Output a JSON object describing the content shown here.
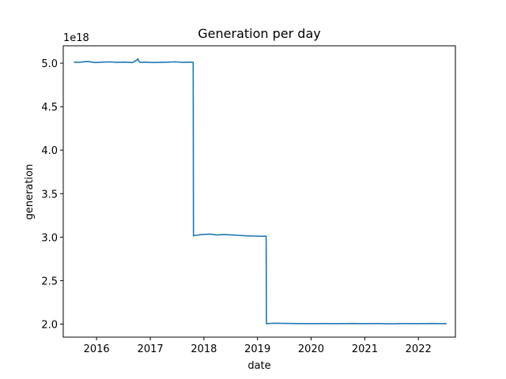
{
  "chart_data": {
    "type": "line",
    "title": "Generation per day",
    "xlabel": "date",
    "ylabel": "generation",
    "y_multiplier_label": "1e18",
    "x_ticks": [
      "2016",
      "2017",
      "2018",
      "2019",
      "2020",
      "2021",
      "2022"
    ],
    "y_ticks": [
      "2.0",
      "2.5",
      "3.0",
      "3.5",
      "4.0",
      "4.5",
      "5.0"
    ],
    "xlim": [
      "2015-05-19",
      "2022-09-10"
    ],
    "ylim": [
      1.85,
      5.2
    ],
    "grid": false,
    "line_color": "#1f77b4",
    "series": [
      {
        "x": [
          "2015-07-30",
          "2015-09-15",
          "2015-11-01",
          "2015-12-20",
          "2016-02-10",
          "2016-04-01",
          "2016-05-20",
          "2016-07-10",
          "2016-09-01",
          "2016-10-01",
          "2016-10-08",
          "2016-10-20",
          "2016-12-01",
          "2017-01-20",
          "2017-03-10",
          "2017-05-01",
          "2017-06-20",
          "2017-08-10",
          "2017-10-01",
          "2017-10-20",
          "2017-10-22",
          "2017-11-01",
          "2017-12-20",
          "2018-02-10",
          "2018-04-01",
          "2018-05-20",
          "2018-07-10",
          "2018-09-01",
          "2018-10-20",
          "2018-12-10",
          "2019-02-01",
          "2019-03-01",
          "2019-03-03",
          "2019-04-20",
          "2019-07-01",
          "2019-10-01",
          "2020-01-01",
          "2020-04-01",
          "2020-07-01",
          "2020-10-01",
          "2021-01-01",
          "2021-04-01",
          "2021-07-01",
          "2021-10-01",
          "2022-01-01",
          "2022-04-01",
          "2022-07-12"
        ],
        "y": [
          5.01,
          5.012,
          5.02,
          5.008,
          5.012,
          5.015,
          5.01,
          5.012,
          5.008,
          5.035,
          5.05,
          5.01,
          5.012,
          5.008,
          5.01,
          5.012,
          5.015,
          5.01,
          5.012,
          5.01,
          3.015,
          3.02,
          3.03,
          3.035,
          3.025,
          3.03,
          3.025,
          3.02,
          3.015,
          3.012,
          3.01,
          3.01,
          2.005,
          2.01,
          2.008,
          2.006,
          2.005,
          2.006,
          2.005,
          2.007,
          2.005,
          2.006,
          2.004,
          2.006,
          2.005,
          2.007,
          2.005
        ]
      }
    ]
  }
}
